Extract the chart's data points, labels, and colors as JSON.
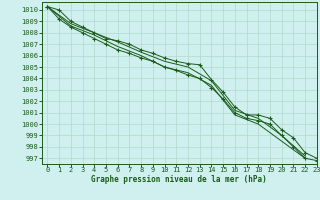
{
  "title": "Graphe pression niveau de la mer (hPa)",
  "bg_color": "#cff0ee",
  "grid_color": "#b0d8cc",
  "line_color": "#1a5c1a",
  "xlim": [
    -0.5,
    23
  ],
  "ylim": [
    996.5,
    1010.7
  ],
  "yticks": [
    997,
    998,
    999,
    1000,
    1001,
    1002,
    1003,
    1004,
    1005,
    1006,
    1007,
    1008,
    1009,
    1010
  ],
  "xticks": [
    0,
    1,
    2,
    3,
    4,
    5,
    6,
    7,
    8,
    9,
    10,
    11,
    12,
    13,
    14,
    15,
    16,
    17,
    18,
    19,
    20,
    21,
    22,
    23
  ],
  "series": [
    {
      "x": [
        0,
        1,
        2,
        3,
        4,
        5,
        6,
        7,
        8,
        9,
        10,
        11,
        12,
        13,
        14,
        15,
        16,
        17,
        18,
        19,
        20,
        21,
        22,
        23
      ],
      "y": [
        1010.3,
        1010.0,
        1009.0,
        1008.5,
        1008.0,
        1007.5,
        1007.3,
        1007.0,
        1006.5,
        1006.2,
        1005.8,
        1005.5,
        1005.3,
        1005.2,
        1003.9,
        1002.8,
        1001.5,
        1000.8,
        1000.8,
        1000.5,
        999.5,
        998.8,
        997.5,
        997.0
      ],
      "has_marker": true
    },
    {
      "x": [
        0,
        2,
        4,
        6,
        8,
        10,
        12,
        14,
        16,
        18,
        20,
        22
      ],
      "y": [
        1010.3,
        1008.8,
        1008.0,
        1007.2,
        1006.3,
        1005.5,
        1005.0,
        1003.8,
        1001.2,
        1000.5,
        999.0,
        997.2
      ],
      "has_marker": false
    },
    {
      "x": [
        0,
        2,
        4,
        6,
        8,
        10,
        12,
        14,
        16,
        18,
        20,
        22
      ],
      "y": [
        1010.3,
        1008.6,
        1007.8,
        1006.8,
        1006.0,
        1005.0,
        1004.5,
        1003.4,
        1000.8,
        1000.0,
        998.5,
        997.0
      ],
      "has_marker": false
    },
    {
      "x": [
        0,
        1,
        2,
        3,
        4,
        5,
        6,
        7,
        8,
        9,
        10,
        11,
        12,
        13,
        14,
        15,
        16,
        17,
        18,
        19,
        20,
        21,
        22,
        23
      ],
      "y": [
        1010.3,
        1009.2,
        1008.5,
        1008.0,
        1007.5,
        1007.0,
        1006.5,
        1006.2,
        1005.8,
        1005.5,
        1005.0,
        1004.7,
        1004.3,
        1004.0,
        1003.2,
        1002.2,
        1001.0,
        1000.5,
        1000.3,
        1000.0,
        999.0,
        998.0,
        997.0,
        996.8
      ],
      "has_marker": true
    }
  ]
}
